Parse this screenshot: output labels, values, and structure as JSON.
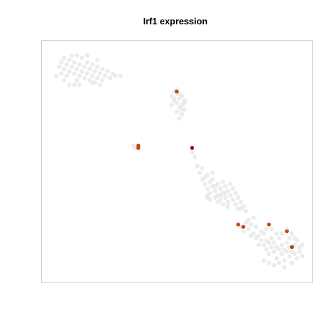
{
  "chart_data": {
    "type": "scatter",
    "title": "Irf1 expression",
    "xlabel": "",
    "ylabel": "",
    "xlim": [
      0,
      100
    ],
    "ylim": [
      0,
      100
    ],
    "grid": false,
    "axes_visible": false,
    "colors": {
      "background_point": "#e6e6e6",
      "expr_low": "#c44a12",
      "expr_mid": "#b23a12",
      "expr_high": "#8c1414",
      "frame": "#cccccc"
    },
    "background_points": [
      [
        4,
        92
      ],
      [
        5,
        94
      ],
      [
        5,
        89
      ],
      [
        6,
        91
      ],
      [
        6,
        96
      ],
      [
        7,
        93
      ],
      [
        7,
        88
      ],
      [
        8,
        95
      ],
      [
        8,
        90
      ],
      [
        9,
        92
      ],
      [
        9,
        97
      ],
      [
        10,
        89
      ],
      [
        10,
        94
      ],
      [
        11,
        91
      ],
      [
        11,
        86
      ],
      [
        12,
        93
      ],
      [
        12,
        88
      ],
      [
        13,
        96
      ],
      [
        13,
        90
      ],
      [
        14,
        92
      ],
      [
        14,
        87
      ],
      [
        15,
        94
      ],
      [
        15,
        89
      ],
      [
        16,
        91
      ],
      [
        16,
        86
      ],
      [
        17,
        93
      ],
      [
        17,
        88
      ],
      [
        18,
        90
      ],
      [
        18,
        85
      ],
      [
        19,
        92
      ],
      [
        19,
        87
      ],
      [
        20,
        89
      ],
      [
        21,
        91
      ],
      [
        21,
        86
      ],
      [
        22,
        88
      ],
      [
        23,
        90
      ],
      [
        24,
        87
      ],
      [
        25,
        89
      ],
      [
        26,
        88
      ],
      [
        28,
        88
      ],
      [
        6,
        86
      ],
      [
        8,
        84
      ],
      [
        10,
        84
      ],
      [
        12,
        84
      ],
      [
        20,
        84
      ],
      [
        3,
        88
      ],
      [
        11,
        97
      ],
      [
        15,
        97
      ],
      [
        17,
        85
      ],
      [
        19,
        95
      ],
      [
        48,
        79
      ],
      [
        49,
        81
      ],
      [
        49,
        77
      ],
      [
        50,
        80
      ],
      [
        50,
        76
      ],
      [
        51,
        78
      ],
      [
        51,
        74
      ],
      [
        52,
        79
      ],
      [
        52,
        75
      ],
      [
        53,
        77
      ],
      [
        53,
        73
      ],
      [
        48,
        75
      ],
      [
        50,
        72
      ],
      [
        52,
        71
      ],
      [
        51,
        69
      ],
      [
        49,
        78
      ],
      [
        50,
        82
      ],
      [
        53,
        76
      ],
      [
        51,
        80
      ],
      [
        52,
        73
      ],
      [
        33,
        57
      ],
      [
        34,
        56
      ],
      [
        56,
        54
      ],
      [
        57,
        52
      ],
      [
        58,
        48
      ],
      [
        59,
        45
      ],
      [
        60,
        47
      ],
      [
        61,
        43
      ],
      [
        61,
        40
      ],
      [
        62,
        44
      ],
      [
        62,
        38
      ],
      [
        63,
        41
      ],
      [
        63,
        36
      ],
      [
        64,
        42
      ],
      [
        64,
        39
      ],
      [
        65,
        37
      ],
      [
        65,
        34
      ],
      [
        66,
        40
      ],
      [
        66,
        35
      ],
      [
        67,
        38
      ],
      [
        67,
        33
      ],
      [
        68,
        36
      ],
      [
        68,
        31
      ],
      [
        69,
        39
      ],
      [
        69,
        34
      ],
      [
        70,
        37
      ],
      [
        70,
        32
      ],
      [
        71,
        35
      ],
      [
        72,
        33
      ],
      [
        73,
        36
      ],
      [
        73,
        31
      ],
      [
        74,
        34
      ],
      [
        75,
        32
      ],
      [
        76,
        30
      ],
      [
        60,
        42
      ],
      [
        62,
        35
      ],
      [
        64,
        45
      ],
      [
        66,
        32
      ],
      [
        68,
        41
      ],
      [
        70,
        30
      ],
      [
        72,
        38
      ],
      [
        74,
        29
      ],
      [
        63,
        33
      ],
      [
        71,
        40
      ],
      [
        62,
        34
      ],
      [
        65,
        39
      ],
      [
        67,
        35
      ],
      [
        69,
        36
      ],
      [
        75,
        29
      ],
      [
        77,
        28
      ],
      [
        75,
        21
      ],
      [
        76,
        19
      ],
      [
        77,
        23
      ],
      [
        78,
        20
      ],
      [
        79,
        22
      ],
      [
        80,
        18
      ],
      [
        81,
        21
      ],
      [
        82,
        17
      ],
      [
        83,
        19
      ],
      [
        83,
        15
      ],
      [
        84,
        13
      ],
      [
        84,
        18
      ],
      [
        85,
        15
      ],
      [
        85,
        11
      ],
      [
        86,
        14
      ],
      [
        86,
        9
      ],
      [
        87,
        12
      ],
      [
        87,
        16
      ],
      [
        88,
        10
      ],
      [
        88,
        14
      ],
      [
        89,
        12
      ],
      [
        89,
        7
      ],
      [
        90,
        11
      ],
      [
        90,
        16
      ],
      [
        91,
        9
      ],
      [
        91,
        13
      ],
      [
        92,
        11
      ],
      [
        92,
        6
      ],
      [
        93,
        10
      ],
      [
        93,
        14
      ],
      [
        94,
        8
      ],
      [
        94,
        12
      ],
      [
        95,
        10
      ],
      [
        95,
        5
      ],
      [
        96,
        9
      ],
      [
        96,
        13
      ],
      [
        97,
        7
      ],
      [
        98,
        10
      ],
      [
        99,
        8
      ],
      [
        97,
        15
      ],
      [
        84,
        6
      ],
      [
        86,
        5
      ],
      [
        88,
        4
      ],
      [
        90,
        5
      ],
      [
        92,
        3
      ],
      [
        82,
        13
      ],
      [
        81,
        16
      ],
      [
        79,
        17
      ],
      [
        78,
        24
      ],
      [
        80,
        25
      ],
      [
        85,
        20
      ],
      [
        87,
        20
      ],
      [
        89,
        18
      ],
      [
        91,
        18
      ],
      [
        93,
        20
      ],
      [
        95,
        18
      ],
      [
        96,
        16
      ],
      [
        94,
        16
      ],
      [
        98,
        12
      ],
      [
        99,
        13
      ]
    ],
    "expressing_points": [
      {
        "x": 50,
        "y": 81,
        "value": 0.6
      },
      {
        "x": 35,
        "y": 56,
        "value": 0.6
      },
      {
        "x": 35,
        "y": 57,
        "value": 0.6
      },
      {
        "x": 56,
        "y": 56,
        "value": 1.0
      },
      {
        "x": 74,
        "y": 22,
        "value": 0.6
      },
      {
        "x": 76,
        "y": 21,
        "value": 0.6
      },
      {
        "x": 86,
        "y": 22,
        "value": 0.6
      },
      {
        "x": 93,
        "y": 19,
        "value": 0.6
      },
      {
        "x": 95,
        "y": 12,
        "value": 0.7
      }
    ]
  }
}
